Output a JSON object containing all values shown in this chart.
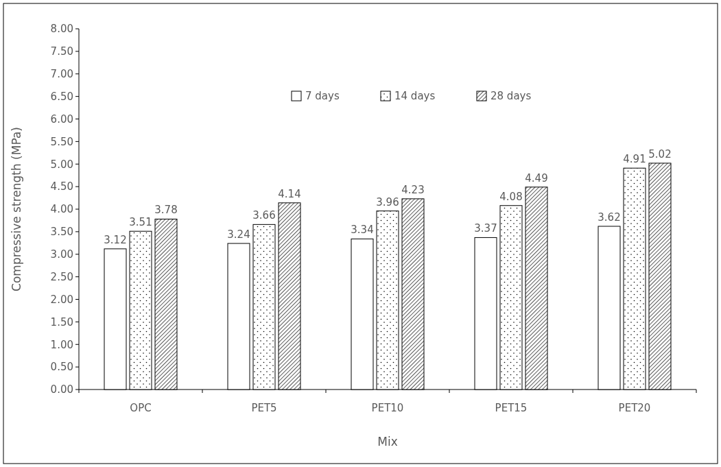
{
  "chart_data": {
    "type": "bar",
    "xlabel": "Mix",
    "ylabel": "Compressive strength (MPa)",
    "categories": [
      "OPC",
      "PET5",
      "PET10",
      "PET15",
      "PET20"
    ],
    "series": [
      {
        "name": "7 days",
        "color": "#ffffff",
        "values": [
          3.12,
          3.24,
          3.34,
          3.37,
          3.62
        ]
      },
      {
        "name": "14 days",
        "color": "#000000",
        "values": [
          3.51,
          3.66,
          3.96,
          4.08,
          4.91
        ]
      },
      {
        "name": "28 days",
        "color": "#000000",
        "values": [
          3.78,
          4.14,
          4.23,
          4.49,
          5.02
        ]
      }
    ],
    "ylim": [
      0,
      8
    ],
    "yticks": [
      {
        "value": 0,
        "label": "0.00"
      },
      {
        "value": 0.5,
        "label": "0.50"
      },
      {
        "value": 1,
        "label": "1.00"
      },
      {
        "value": 1.5,
        "label": "1.50"
      },
      {
        "value": 2,
        "label": "2.00"
      },
      {
        "value": 2.5,
        "label": "2.50"
      },
      {
        "value": 3,
        "label": "3.00"
      },
      {
        "value": 3.5,
        "label": "3.50"
      },
      {
        "value": 4,
        "label": "4.00"
      },
      {
        "value": 4.5,
        "label": "4.50"
      },
      {
        "value": 5,
        "label": "5.00"
      },
      {
        "value": 5.5,
        "label": "5.50"
      },
      {
        "value": 6,
        "label": "6.00"
      },
      {
        "value": 6.5,
        "label": "6.50"
      },
      {
        "value": 7,
        "label": "7.00"
      },
      {
        "value": 7.5,
        "label": "7.50"
      },
      {
        "value": 8,
        "label": "8.00"
      }
    ],
    "data_labels": true,
    "legend": "top",
    "grid": false
  }
}
